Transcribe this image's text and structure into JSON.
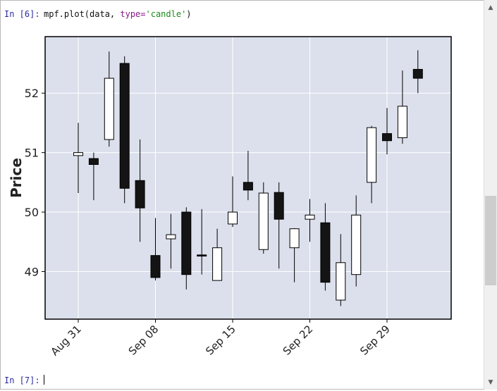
{
  "cells": {
    "in6_prompt": "In [6]:",
    "in6_code_prefix": "mpf.plot(data, ",
    "in6_code_kw": "type=",
    "in6_code_str": "'candle'",
    "in6_code_suffix": ")",
    "in7_prompt": "In [7]:"
  },
  "scrollbar": {
    "up_icon": "triangle-up-icon",
    "down_icon": "triangle-down-icon"
  },
  "chart_data": {
    "type": "candlestick",
    "ylabel": "Price",
    "ylim": [
      48.2,
      52.95
    ],
    "yticks": [
      49,
      50,
      51,
      52
    ],
    "xtick_labels": [
      {
        "index": 0,
        "label": "Aug 31"
      },
      {
        "index": 5,
        "label": "Sep 08"
      },
      {
        "index": 10,
        "label": "Sep 15"
      },
      {
        "index": 15,
        "label": "Sep 22"
      },
      {
        "index": 20,
        "label": "Sep 29"
      }
    ],
    "grid": true,
    "colors": {
      "background": "#dce0ec",
      "up": "#ffffff",
      "down": "#141414",
      "edge": "#000000",
      "grid": "#ffffff"
    },
    "candles": [
      {
        "open": 50.95,
        "high": 51.5,
        "low": 50.32,
        "close": 51.0
      },
      {
        "open": 50.9,
        "high": 51.0,
        "low": 50.2,
        "close": 50.8
      },
      {
        "open": 51.22,
        "high": 52.7,
        "low": 51.1,
        "close": 52.25
      },
      {
        "open": 52.5,
        "high": 52.62,
        "low": 50.15,
        "close": 50.4
      },
      {
        "open": 50.53,
        "high": 51.22,
        "low": 49.5,
        "close": 50.07
      },
      {
        "open": 49.27,
        "high": 49.9,
        "low": 48.85,
        "close": 48.9
      },
      {
        "open": 49.55,
        "high": 49.97,
        "low": 49.05,
        "close": 49.62
      },
      {
        "open": 50.0,
        "high": 50.08,
        "low": 48.7,
        "close": 48.95
      },
      {
        "open": 49.28,
        "high": 50.05,
        "low": 48.95,
        "close": 49.26
      },
      {
        "open": 48.85,
        "high": 49.72,
        "low": 48.85,
        "close": 49.4
      },
      {
        "open": 49.8,
        "high": 50.6,
        "low": 49.75,
        "close": 50.0
      },
      {
        "open": 50.5,
        "high": 51.03,
        "low": 50.2,
        "close": 50.37
      },
      {
        "open": 49.37,
        "high": 50.5,
        "low": 49.3,
        "close": 50.32
      },
      {
        "open": 50.33,
        "high": 50.5,
        "low": 49.05,
        "close": 49.88
      },
      {
        "open": 49.4,
        "high": 49.73,
        "low": 48.82,
        "close": 49.72
      },
      {
        "open": 49.88,
        "high": 50.22,
        "low": 49.5,
        "close": 49.95
      },
      {
        "open": 49.82,
        "high": 50.15,
        "low": 48.68,
        "close": 48.82
      },
      {
        "open": 48.52,
        "high": 49.63,
        "low": 48.42,
        "close": 49.15
      },
      {
        "open": 48.95,
        "high": 50.28,
        "low": 48.75,
        "close": 49.95
      },
      {
        "open": 50.5,
        "high": 51.45,
        "low": 50.15,
        "close": 51.42
      },
      {
        "open": 51.32,
        "high": 51.75,
        "low": 50.97,
        "close": 51.2
      },
      {
        "open": 51.25,
        "high": 52.38,
        "low": 51.15,
        "close": 51.78
      },
      {
        "open": 52.4,
        "high": 52.72,
        "low": 52.0,
        "close": 52.25
      }
    ]
  }
}
